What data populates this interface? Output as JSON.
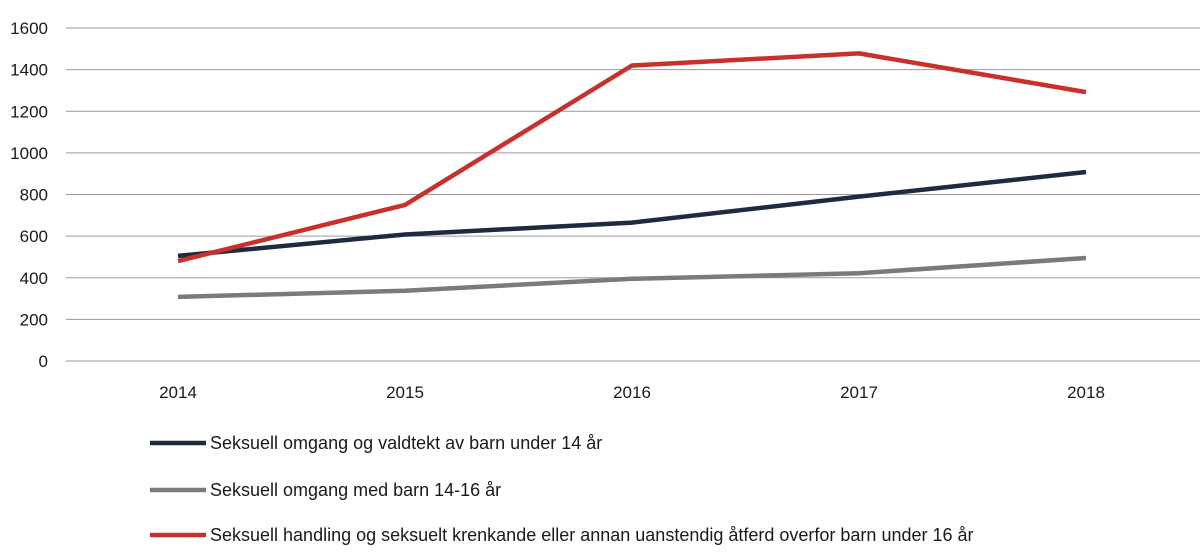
{
  "chart_data": {
    "type": "line",
    "title": "",
    "xlabel": "",
    "ylabel": "",
    "x": [
      "2014",
      "2015",
      "2016",
      "2017",
      "2018"
    ],
    "ylim": [
      0,
      1600
    ],
    "yticks": [
      0,
      200,
      400,
      600,
      800,
      1000,
      1200,
      1400,
      1600
    ],
    "grid": "horizontal",
    "legend_position": "bottom",
    "series": [
      {
        "name": "Seksuell omgang og valdtekt av barn under 14 år",
        "color": "#1e2a3f",
        "values": [
          505,
          608,
          665,
          790,
          908
        ]
      },
      {
        "name": "Seksuell omgang med barn 14-16 år",
        "color": "#7a7a7a",
        "values": [
          308,
          338,
          395,
          422,
          495
        ]
      },
      {
        "name": "Seksuell handling og seksuelt krenkande eller annan uanstendig åtferd overfor barn under 16 år",
        "color": "#c9302c",
        "values": [
          480,
          750,
          1420,
          1478,
          1292
        ]
      }
    ]
  }
}
